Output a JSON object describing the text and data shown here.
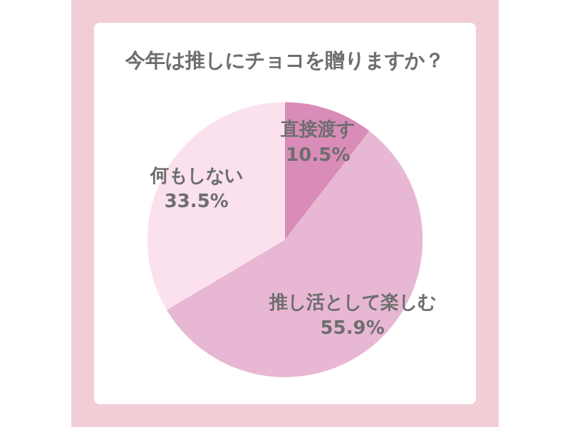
{
  "chart_data": {
    "type": "pie",
    "title": "今年は推しにチョコを贈りますか？",
    "categories": [
      "直接渡す",
      "推し活として楽しむ",
      "何もしない"
    ],
    "values": [
      10.5,
      55.9,
      33.5
    ],
    "value_labels": [
      "10.5%",
      "55.9%",
      "33.5%"
    ],
    "colors": [
      "#d98cb8",
      "#e8b7d3",
      "#fbe1ee"
    ],
    "legend": false
  }
}
